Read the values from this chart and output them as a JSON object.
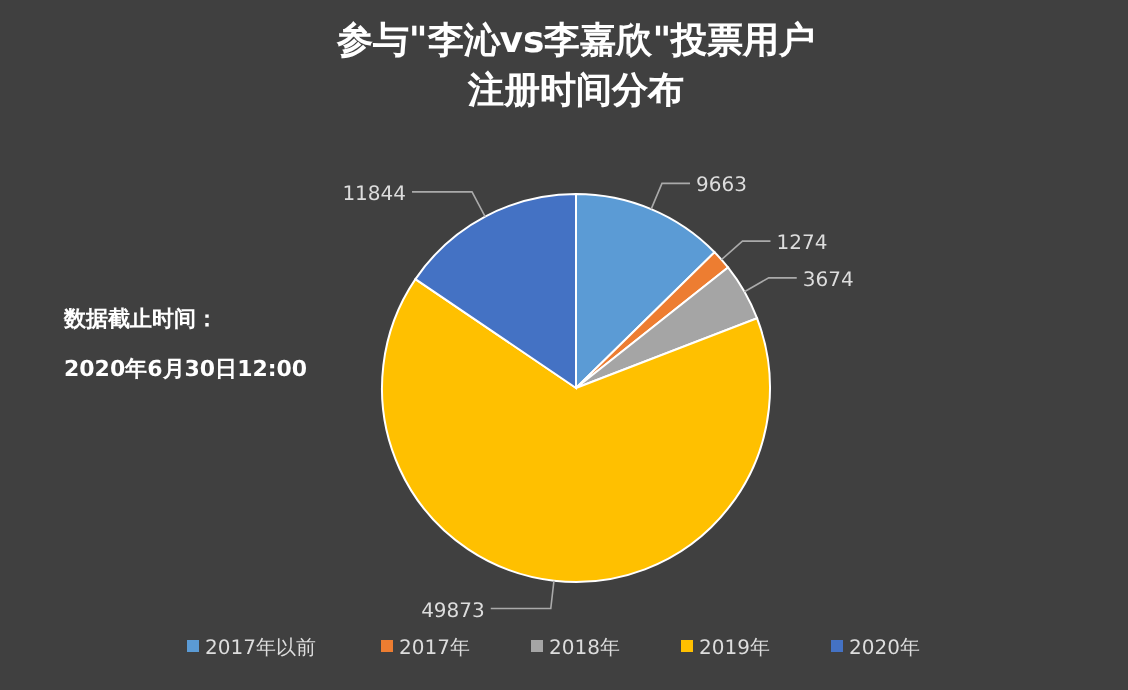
{
  "chart_data": {
    "type": "pie",
    "title": "参与\"李沁vs李嘉欣\"投票用户注册时间分布",
    "categories": [
      "2017年以前",
      "2017年",
      "2018年",
      "2019年",
      "2020年"
    ],
    "values": [
      9663,
      1274,
      3674,
      49873,
      11844
    ],
    "colors": [
      "#5b9bd5",
      "#ed7d31",
      "#a5a5a5",
      "#ffc000",
      "#4472c4"
    ],
    "data_labels": true,
    "legend": "bottom",
    "annotations": [
      "数据截止时间：",
      "2020年6月30日12:00"
    ]
  }
}
